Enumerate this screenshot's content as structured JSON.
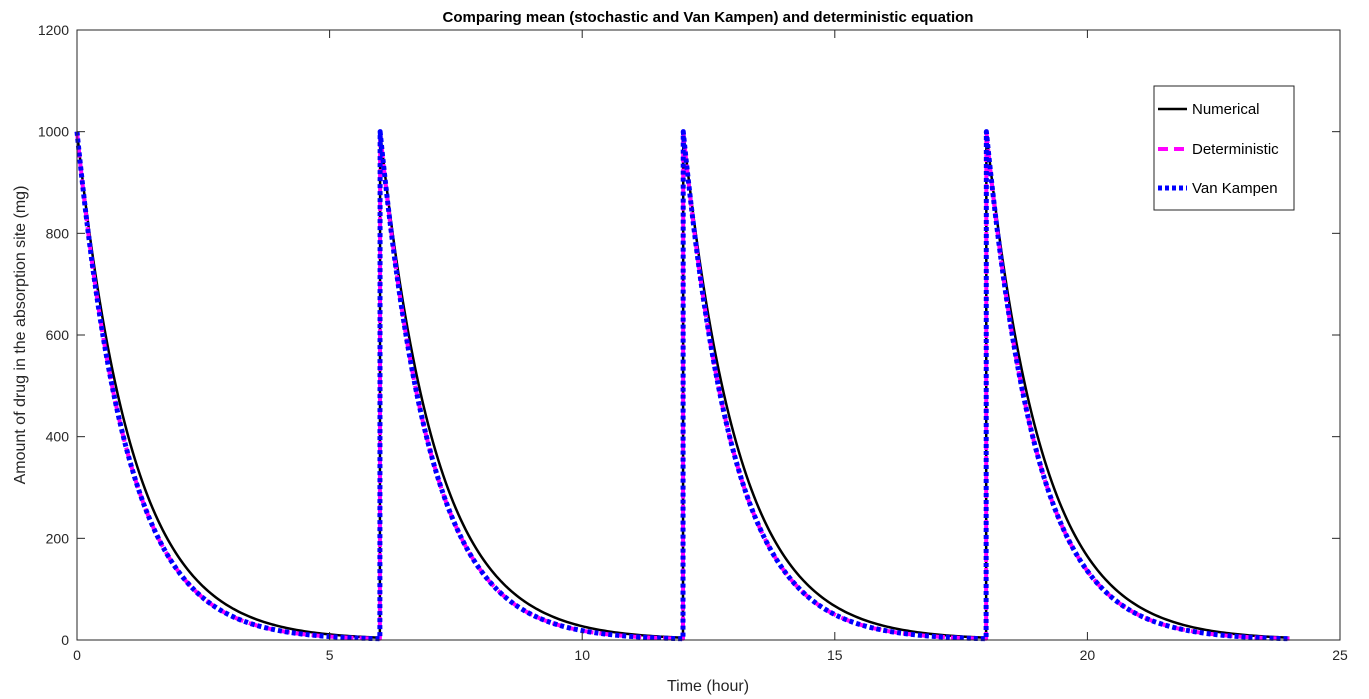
{
  "chart_data": {
    "type": "line",
    "title": "Comparing mean (stochastic and Van Kampen) and deterministic equation",
    "xlabel": "Time (hour)",
    "ylabel": "Amount of drug in the absorption site (mg)",
    "xlim": [
      0,
      25
    ],
    "ylim": [
      0,
      1200
    ],
    "xticks": [
      0,
      5,
      10,
      15,
      20,
      25
    ],
    "yticks": [
      0,
      200,
      400,
      600,
      800,
      1000,
      1200
    ],
    "xtick_labels": [
      "0",
      "5",
      "10",
      "15",
      "20",
      "25"
    ],
    "ytick_labels": [
      "0",
      "200",
      "400",
      "600",
      "800",
      "1000",
      "1200"
    ],
    "grid": false,
    "legend_position": "top-right",
    "dose_times": [
      0,
      6,
      12,
      18
    ],
    "x": [
      0,
      0.5,
      1,
      1.5,
      2,
      2.5,
      3,
      3.5,
      4,
      4.5,
      5,
      5.5,
      5.99,
      6,
      6.5,
      7,
      7.5,
      8,
      8.5,
      9,
      9.5,
      10,
      10.5,
      11,
      11.5,
      11.99,
      12,
      12.5,
      13,
      13.5,
      14,
      14.5,
      15,
      15.5,
      16,
      16.5,
      17,
      17.5,
      17.99,
      18,
      18.5,
      19,
      19.5,
      20,
      20.5,
      21,
      21.5,
      22,
      22.5,
      23,
      23.5,
      24
    ],
    "series": [
      {
        "name": "Numerical",
        "color": "#000000",
        "style": "solid",
        "values": [
          1000,
          637,
          406,
          259,
          165,
          105,
          67,
          43,
          27,
          17,
          11,
          7,
          4.5,
          1000,
          637,
          406,
          259,
          165,
          105,
          67,
          43,
          27,
          17,
          11,
          7,
          4.5,
          1000,
          637,
          406,
          259,
          165,
          105,
          67,
          43,
          27,
          17,
          11,
          7,
          4.5,
          1000,
          637,
          406,
          259,
          165,
          105,
          67,
          43,
          27,
          17,
          11,
          7,
          4.5
        ]
      },
      {
        "name": "Deterministic",
        "color": "#ff00ff",
        "style": "dashed",
        "values": [
          1000,
          607,
          368,
          223,
          135,
          82,
          50,
          30,
          18,
          11,
          7,
          4,
          2.5,
          1000,
          607,
          368,
          223,
          135,
          82,
          50,
          30,
          18,
          11,
          7,
          4,
          2.5,
          1000,
          607,
          368,
          223,
          135,
          82,
          50,
          30,
          18,
          11,
          7,
          4,
          2.5,
          1000,
          607,
          368,
          223,
          135,
          82,
          50,
          30,
          18,
          11,
          7,
          4,
          2.5
        ]
      },
      {
        "name": "Van Kampen",
        "color": "#0000ff",
        "style": "dotted",
        "values": [
          1000,
          607,
          368,
          223,
          135,
          82,
          50,
          30,
          18,
          11,
          7,
          4,
          2.5,
          1000,
          607,
          368,
          223,
          135,
          82,
          50,
          30,
          18,
          11,
          7,
          4,
          2.5,
          1000,
          607,
          368,
          223,
          135,
          82,
          50,
          30,
          18,
          11,
          7,
          4,
          2.5,
          1000,
          607,
          368,
          223,
          135,
          82,
          50,
          30,
          18,
          11,
          7,
          4,
          2.5
        ]
      }
    ]
  }
}
